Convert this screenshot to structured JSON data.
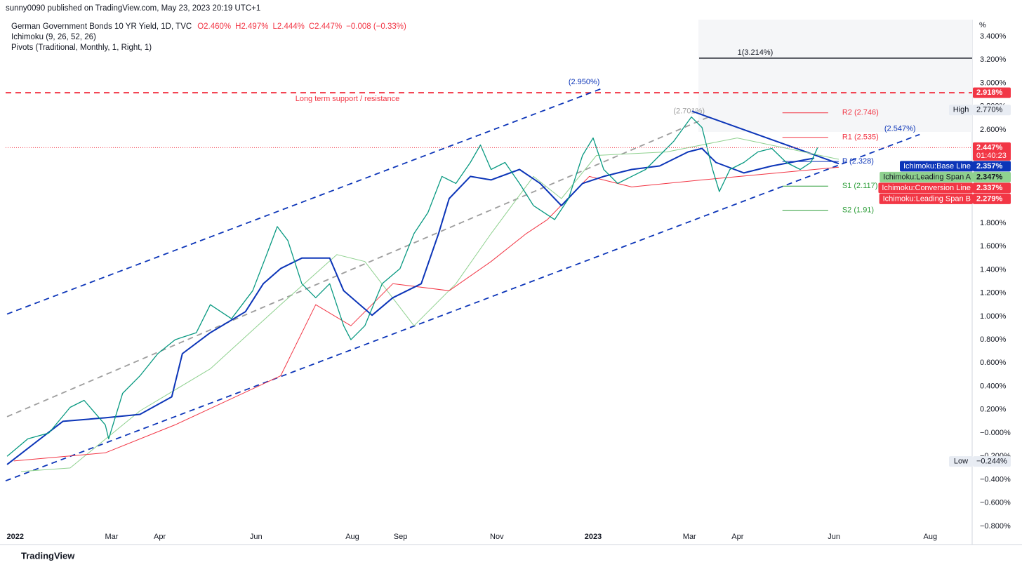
{
  "header": {
    "publisher": "sunny0090 published on TradingView.com, May 23, 2023 20:19 UTC+1",
    "symbol": "German Government Bonds 10 YR Yield, 1D, TVC",
    "ohlc": [
      "O2.460%",
      "H2.497%",
      "L2.444%",
      "C2.447%",
      "−0.008 (−0.33%)"
    ],
    "indicators": [
      "Ichimoku (9, 26, 52, 26)",
      "Pivots (Traditional, Monthly, 1, Right, 1)"
    ],
    "axis_unit": "%",
    "footer": "TradingView"
  },
  "chart_data": {
    "type": "line",
    "xlim": [
      -0.2,
      19.87
    ],
    "xticks": [
      {
        "value": 0,
        "label": "2022"
      },
      {
        "value": 2,
        "label": "Mar"
      },
      {
        "value": 3,
        "label": "Apr"
      },
      {
        "value": 5,
        "label": "Jun"
      },
      {
        "value": 7,
        "label": "Aug"
      },
      {
        "value": 8,
        "label": "Sep"
      },
      {
        "value": 10,
        "label": "Nov"
      },
      {
        "value": 12,
        "label": "2023"
      },
      {
        "value": 14,
        "label": "Mar"
      },
      {
        "value": 15,
        "label": "Apr"
      },
      {
        "value": 17,
        "label": "Jun"
      },
      {
        "value": 19,
        "label": "Aug"
      }
    ],
    "ylim": [
      -0.8,
      3.4
    ],
    "yticks": [
      {
        "value": 3.4,
        "label": "3.400%"
      },
      {
        "value": 3.2,
        "label": "3.200%"
      },
      {
        "value": 3.0,
        "label": "3.000%"
      },
      {
        "value": 2.8,
        "label": "2.800%"
      },
      {
        "value": 2.6,
        "label": "2.600%"
      },
      {
        "value": 2.4,
        "label": "2.400%"
      },
      {
        "value": 2.2,
        "label": "2.200%"
      },
      {
        "value": 2.0,
        "label": "2.000%"
      },
      {
        "value": 1.8,
        "label": "1.800%"
      },
      {
        "value": 1.6,
        "label": "1.600%"
      },
      {
        "value": 1.4,
        "label": "1.400%"
      },
      {
        "value": 1.2,
        "label": "1.200%"
      },
      {
        "value": 1.0,
        "label": "1.000%"
      },
      {
        "value": 0.8,
        "label": "0.800%"
      },
      {
        "value": 0.6,
        "label": "0.600%"
      },
      {
        "value": 0.4,
        "label": "0.400%"
      },
      {
        "value": 0.2,
        "label": "0.200%"
      },
      {
        "value": 0,
        "label": "−0.000%"
      },
      {
        "value": -0.2,
        "label": "−0.200%"
      },
      {
        "value": -0.4,
        "label": "−0.400%"
      },
      {
        "value": -0.6,
        "label": "−0.600%"
      },
      {
        "value": -0.8,
        "label": "−0.800%"
      }
    ],
    "grid": false,
    "series": [
      {
        "color": "#089981",
        "width": 1.3,
        "x": [
          -0.17,
          0.26,
          0.7,
          1.14,
          1.43,
          1.87,
          1.94,
          2.23,
          2.59,
          2.96,
          3.32,
          3.76,
          4.05,
          4.49,
          4.93,
          5.22,
          5.44,
          5.66,
          5.95,
          6.24,
          6.53,
          6.82,
          6.97,
          7.26,
          7.62,
          7.99,
          8.28,
          8.57,
          8.86,
          9.15,
          9.45,
          9.66,
          9.88,
          10.17,
          10.47,
          10.76,
          11.2,
          11.49,
          11.78,
          12.0,
          12.22,
          12.51,
          12.8,
          13.09,
          13.38,
          13.67,
          14.04,
          14.26,
          14.48,
          14.62,
          14.84,
          15.13,
          15.42,
          15.71,
          16.01,
          16.3,
          16.52,
          16.66
        ],
        "values": [
          -0.2,
          -0.05,
          0.0,
          0.22,
          0.28,
          0.07,
          -0.05,
          0.34,
          0.49,
          0.68,
          0.8,
          0.86,
          1.1,
          0.98,
          1.22,
          1.53,
          1.77,
          1.65,
          1.28,
          1.16,
          1.28,
          0.92,
          0.8,
          0.92,
          1.28,
          1.41,
          1.71,
          1.89,
          2.2,
          2.14,
          2.32,
          2.47,
          2.26,
          2.32,
          2.14,
          1.95,
          1.83,
          2.01,
          2.38,
          2.53,
          2.26,
          2.14,
          2.2,
          2.26,
          2.38,
          2.5,
          2.71,
          2.62,
          2.26,
          2.07,
          2.26,
          2.32,
          2.41,
          2.44,
          2.32,
          2.26,
          2.32,
          2.447
        ],
        "last_value": {
          "value": 2.447,
          "label": "2.447%"
        },
        "countdown": "01:40:23",
        "box_color": "#f23645"
      },
      {
        "name": "Ichimoku:Base Line",
        "color": "#0c35b8",
        "width": 2,
        "x": [
          -0.17,
          0.99,
          1.87,
          2.59,
          3.25,
          3.47,
          4.05,
          4.78,
          5.15,
          5.51,
          5.95,
          6.53,
          6.82,
          7.41,
          7.84,
          8.43,
          8.79,
          9.01,
          9.45,
          9.88,
          10.47,
          10.9,
          11.34,
          11.78,
          12.22,
          12.8,
          13.38,
          13.97,
          14.26,
          14.55,
          15.13,
          15.71,
          16.59
        ],
        "values": [
          -0.27,
          0.1,
          0.13,
          0.16,
          0.31,
          0.68,
          0.86,
          1.04,
          1.28,
          1.41,
          1.5,
          1.5,
          1.22,
          1.01,
          1.16,
          1.28,
          1.71,
          2.01,
          2.2,
          2.17,
          2.26,
          2.14,
          1.95,
          2.14,
          2.2,
          2.26,
          2.29,
          2.41,
          2.44,
          2.32,
          2.23,
          2.29,
          2.357
        ],
        "last_value": {
          "value": 2.357,
          "label": "2.357%"
        },
        "box_color": "#0c35b8"
      },
      {
        "name": "Ichimoku:Leading Span A",
        "color": "#8fd18f",
        "width": 1,
        "x": [
          0.12,
          1.14,
          2.59,
          4.05,
          5.51,
          6.68,
          7.26,
          8.28,
          9.15,
          9.88,
          10.76,
          11.34,
          12.07,
          13.53,
          14.99,
          17.1
        ],
        "values": [
          -0.33,
          -0.3,
          0.19,
          0.55,
          1.1,
          1.53,
          1.47,
          0.92,
          1.28,
          1.71,
          2.2,
          2.01,
          2.38,
          2.41,
          2.53,
          2.347
        ],
        "last_value": {
          "value": 2.347,
          "label": "2.347%"
        },
        "box_color": "#8fd18f"
      },
      {
        "name": "Ichimoku:Leading Span B",
        "color": "#f23645",
        "width": 1,
        "x": [
          -0.03,
          1.87,
          3.32,
          5.51,
          6.24,
          6.97,
          7.84,
          9.01,
          9.88,
          10.61,
          11.05,
          11.92,
          12.8,
          14.26,
          17.1
        ],
        "values": [
          -0.24,
          -0.17,
          0.07,
          0.49,
          1.1,
          0.92,
          1.28,
          1.22,
          1.47,
          1.71,
          1.83,
          2.2,
          2.11,
          2.17,
          2.279
        ],
        "last_value": {
          "value": 2.279,
          "label": "2.279%"
        },
        "box_color": "#f23645"
      }
    ],
    "extra_axis_labels": [
      {
        "name": "Ichimoku:Conversion Line",
        "value": 2.337,
        "label": "2.337%",
        "box_color": "#f23645"
      }
    ],
    "levels": [
      {
        "value": 2.918,
        "label": "2.918%",
        "color": "#f23645",
        "dash": true,
        "note": "Long term support / resistance"
      }
    ],
    "fib_levels": [
      {
        "value": 3.214,
        "label": "1(3.214%)",
        "x": [
          14.2,
          19.87
        ],
        "color": "#131722"
      }
    ],
    "pivots": [
      {
        "value": 2.746,
        "label": "R2 (2.746)",
        "x": [
          15.93,
          16.88
        ],
        "color": "#f23645"
      },
      {
        "value": 2.535,
        "label": "R1 (2.535)",
        "x": [
          15.93,
          16.88
        ],
        "color": "#f23645"
      },
      {
        "value": 2.328,
        "label": "P (2.328)",
        "x": [
          15.93,
          17.1
        ],
        "color": "#0c35b8"
      },
      {
        "value": 2.117,
        "label": "S1 (2.117)",
        "x": [
          15.93,
          16.88
        ],
        "color": "#2e9e3a"
      },
      {
        "value": 1.91,
        "label": "S2 (1.91)",
        "x": [
          15.93,
          16.88
        ],
        "color": "#2e9e3a"
      }
    ],
    "trendlines": [
      {
        "x": [
          -0.17,
          12.22
        ],
        "values": [
          1.02,
          2.96
        ],
        "color": "#0c35b8",
        "dash": true,
        "label": "(2.950%)"
      },
      {
        "x": [
          -0.2,
          18.78
        ],
        "values": [
          -0.41,
          2.56
        ],
        "color": "#0c35b8",
        "dash": true,
        "label": "(2.547%)"
      },
      {
        "x": [
          -0.17,
          14.4
        ],
        "values": [
          0.14,
          2.71
        ],
        "color": "#9e9e9e",
        "dash": true,
        "label": "(2.701%)"
      },
      {
        "x": [
          14.05,
          17.1
        ],
        "values": [
          2.76,
          2.31
        ],
        "color": "#0c35b8",
        "dash": false
      }
    ],
    "extremes": [
      {
        "name": "High",
        "value": 2.77,
        "label": "2.770%"
      },
      {
        "name": "Low",
        "value": -0.244,
        "label": "−0.244%"
      }
    ]
  }
}
